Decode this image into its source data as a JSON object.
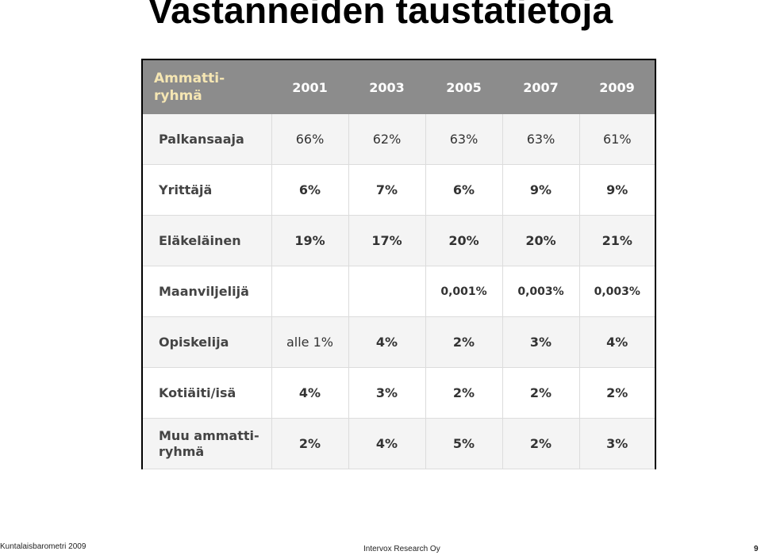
{
  "title": "Vastanneiden taustatietoja",
  "table": {
    "header": {
      "label_line1": "Ammatti-",
      "label_line2": "ryhmä",
      "years": [
        "2001",
        "2003",
        "2005",
        "2007",
        "2009"
      ]
    },
    "rows": [
      {
        "label": "Palkansaaja",
        "values": [
          "66%",
          "62%",
          "63%",
          "63%",
          "61%"
        ]
      },
      {
        "label": "Yrittäjä",
        "values": [
          "6%",
          "7%",
          "6%",
          "9%",
          "9%"
        ]
      },
      {
        "label": "Eläkeläinen",
        "values": [
          "19%",
          "17%",
          "20%",
          "20%",
          "21%"
        ]
      },
      {
        "label": "Maanviljelijä",
        "values": [
          "",
          "",
          "0,001%",
          "0,003%",
          "0,003%"
        ]
      },
      {
        "label": "Opiskelija",
        "values": [
          "alle 1%",
          "4%",
          "2%",
          "3%",
          "4%"
        ]
      },
      {
        "label": "Kotiäiti/isä",
        "values": [
          "4%",
          "3%",
          "2%",
          "2%",
          "2%"
        ]
      },
      {
        "label_line1": "Muu ammatti-",
        "label_line2": "ryhmä",
        "values": [
          "2%",
          "4%",
          "5%",
          "2%",
          "3%"
        ]
      }
    ]
  },
  "footer": {
    "left": "Kuntalaisbarometri 2009",
    "center": "Intervox Research Oy",
    "page": "9"
  }
}
